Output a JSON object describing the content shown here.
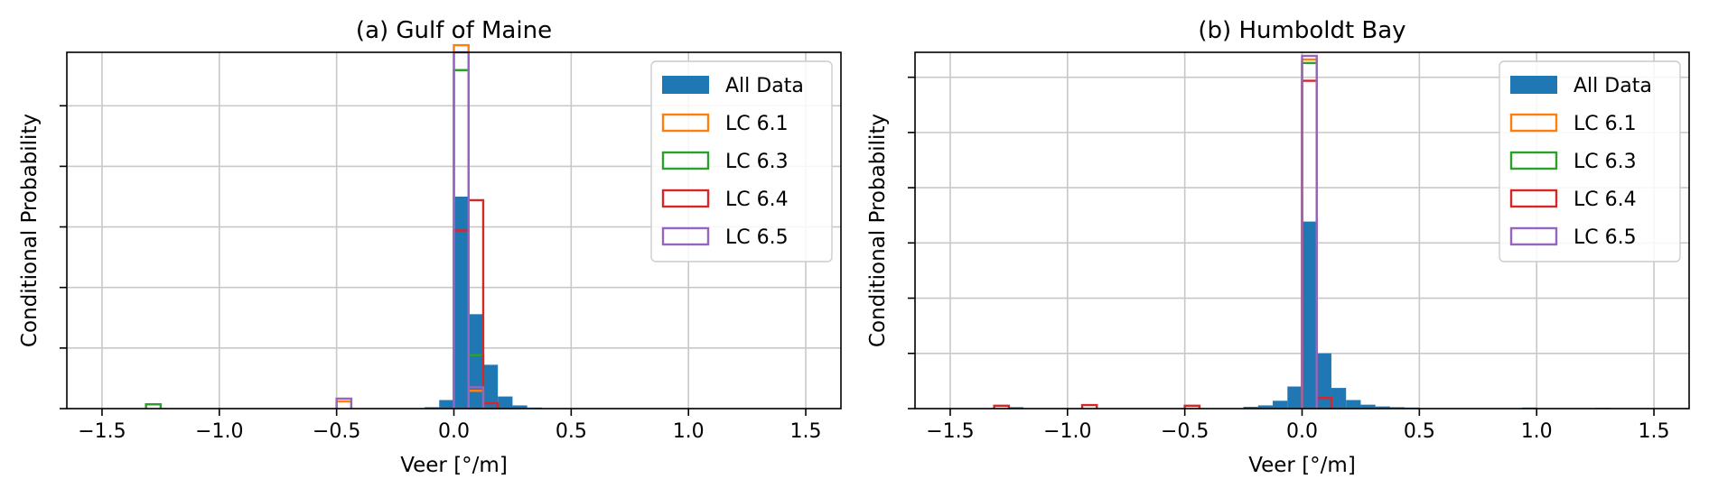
{
  "chart_data": [
    {
      "type": "bar",
      "title": "(a) Gulf of Maine",
      "xlabel": "Veer [°/m]",
      "ylabel": "Conditional Probability",
      "xlim": [
        -1.65,
        1.65
      ],
      "ylim": [
        0,
        1.0
      ],
      "xticks": [
        -1.5,
        -1.0,
        -0.5,
        0.0,
        0.5,
        1.0,
        1.5
      ],
      "xtick_labels": [
        "−1.5",
        "−1.0",
        "−0.5",
        "0.0",
        "0.5",
        "1.0",
        "1.5"
      ],
      "yticks": [
        0,
        0.17,
        0.34,
        0.51,
        0.68,
        0.85
      ],
      "y_tick_labels_shown": false,
      "grid": true,
      "legend_position": "top-right",
      "bin_width": 0.0625,
      "series": [
        {
          "name": "All Data",
          "style": "filled",
          "color": "#1f77b4",
          "bins": [
            [
              -0.125,
              0.004
            ],
            [
              -0.0625,
              0.024
            ],
            [
              0,
              0.595
            ],
            [
              0.0625,
              0.265
            ],
            [
              0.125,
              0.123
            ],
            [
              0.1875,
              0.034
            ],
            [
              0.25,
              0.009
            ],
            [
              0.3125,
              0.003
            ]
          ]
        },
        {
          "name": "LC 6.1",
          "style": "step",
          "color": "#ff7f0e",
          "bins": [
            [
              -0.5,
              0.02
            ],
            [
              0,
              1.02
            ],
            [
              0.0625,
              0.05
            ]
          ]
        },
        {
          "name": "LC 6.3",
          "style": "step",
          "color": "#2ca02c",
          "bins": [
            [
              -1.3125,
              0.012
            ],
            [
              0,
              0.95
            ],
            [
              0.0625,
              0.15
            ]
          ]
        },
        {
          "name": "LC 6.4",
          "style": "step",
          "color": "#d62728",
          "bins": [
            [
              0,
              0.5
            ],
            [
              0.0625,
              0.585
            ],
            [
              0.125,
              0.015
            ]
          ]
        },
        {
          "name": "LC 6.5",
          "style": "step",
          "color": "#9467bd",
          "bins": [
            [
              -0.5,
              0.028
            ],
            [
              0,
              1.0
            ],
            [
              0.0625,
              0.06
            ]
          ]
        }
      ]
    },
    {
      "type": "bar",
      "title": "(b) Humboldt Bay",
      "xlabel": "Veer [°/m]",
      "ylabel": "Conditional Probability",
      "xlim": [
        -1.65,
        1.65
      ],
      "ylim": [
        0,
        1.0
      ],
      "xticks": [
        -1.5,
        -1.0,
        -0.5,
        0.0,
        0.5,
        1.0,
        1.5
      ],
      "xtick_labels": [
        "−1.5",
        "−1.0",
        "−0.5",
        "0.0",
        "0.5",
        "1.0",
        "1.5"
      ],
      "yticks": [
        0,
        0.155,
        0.31,
        0.465,
        0.62,
        0.775,
        0.93
      ],
      "y_tick_labels_shown": false,
      "grid": true,
      "legend_position": "top-right",
      "bin_width": 0.0625,
      "series": [
        {
          "name": "All Data",
          "style": "filled",
          "color": "#1f77b4",
          "bins": [
            [
              -1.25,
              0.004
            ],
            [
              -0.25,
              0.005
            ],
            [
              -0.1875,
              0.009
            ],
            [
              -0.125,
              0.022
            ],
            [
              -0.0625,
              0.062
            ],
            [
              0,
              0.525
            ],
            [
              0.0625,
              0.155
            ],
            [
              0.125,
              0.058
            ],
            [
              0.1875,
              0.024
            ],
            [
              0.25,
              0.011
            ],
            [
              0.3125,
              0.006
            ],
            [
              0.375,
              0.004
            ],
            [
              0.4375,
              0.003
            ],
            [
              0.9375,
              0.003
            ],
            [
              1.25,
              0.002
            ]
          ]
        },
        {
          "name": "LC 6.1",
          "style": "step",
          "color": "#ff7f0e",
          "bins": [
            [
              0,
              0.98
            ]
          ]
        },
        {
          "name": "LC 6.3",
          "style": "step",
          "color": "#2ca02c",
          "bins": [
            [
              0,
              0.97
            ]
          ]
        },
        {
          "name": "LC 6.4",
          "style": "step",
          "color": "#d62728",
          "bins": [
            [
              -1.3125,
              0.008
            ],
            [
              -0.9375,
              0.01
            ],
            [
              -0.5,
              0.008
            ],
            [
              0,
              0.92
            ],
            [
              0.0625,
              0.03
            ]
          ]
        },
        {
          "name": "LC 6.5",
          "style": "step",
          "color": "#9467bd",
          "bins": [
            [
              0,
              0.99
            ]
          ]
        }
      ]
    }
  ]
}
